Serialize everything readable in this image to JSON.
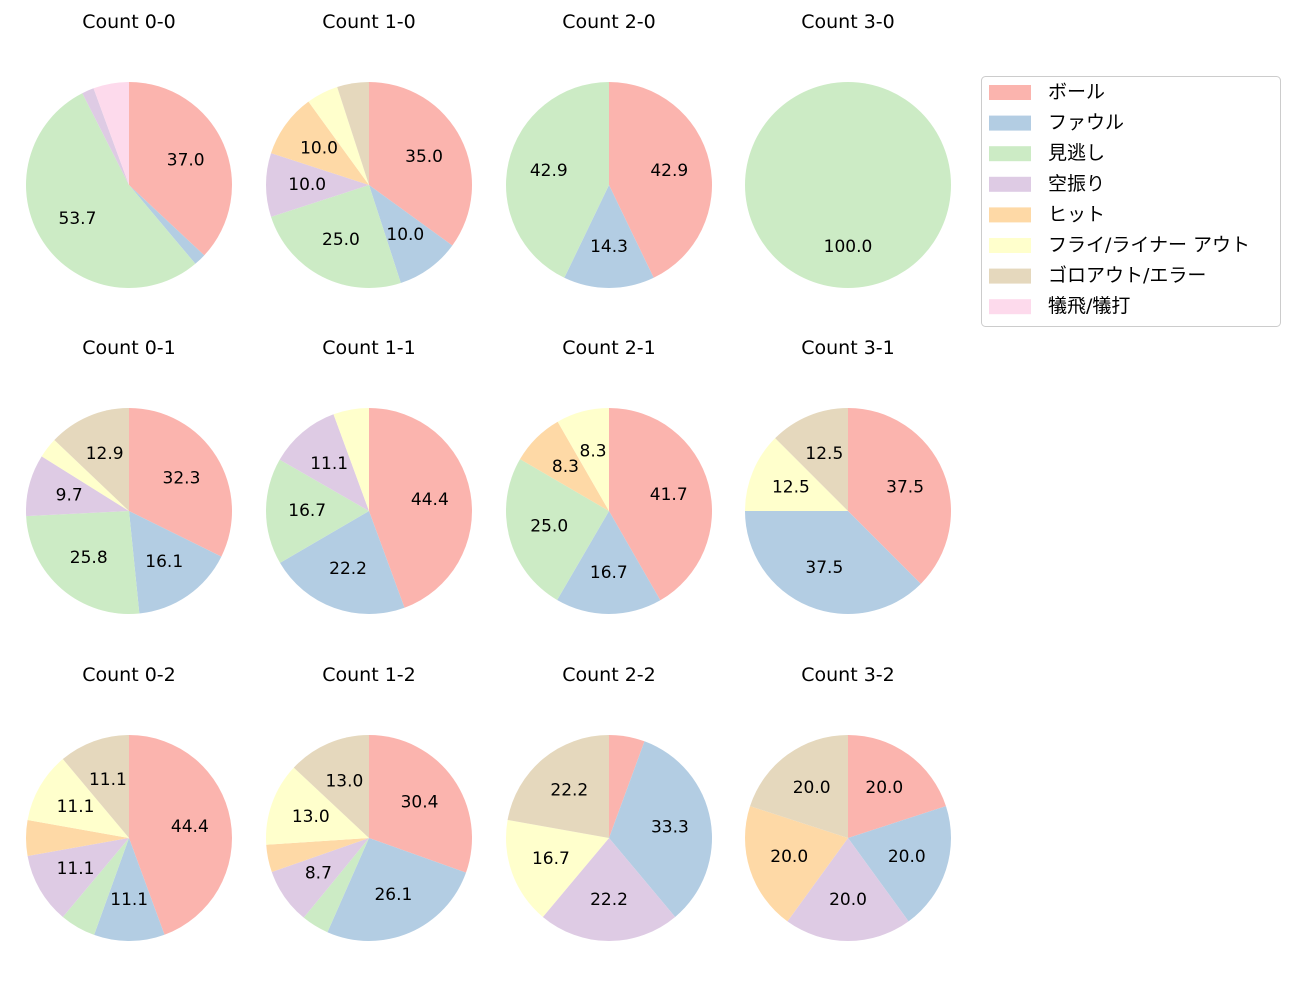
{
  "chart_data": {
    "type": "pie",
    "categories": [
      "ボール",
      "ファウル",
      "見逃し",
      "空振り",
      "ヒット",
      "フライ/ライナー アウト",
      "ゴロアウト/エラー",
      "犠飛/犠打"
    ],
    "colors": [
      "#fbb4ae",
      "#b3cde3",
      "#ccebc5",
      "#decbe4",
      "#fed9a6",
      "#ffffcc",
      "#e5d8bd",
      "#fddaec"
    ],
    "start_angle": 90,
    "direction": "clockwise",
    "label_format": "percent, 1 decimal; labels hidden for small slices",
    "legend": "top-right",
    "charts": [
      {
        "title": "Count 0-0",
        "values": [
          37.0,
          1.9,
          53.7,
          1.9,
          0,
          0,
          0,
          5.6
        ]
      },
      {
        "title": "Count 1-0",
        "values": [
          35.0,
          10.0,
          25.0,
          10.0,
          10.0,
          5.0,
          5.0,
          0
        ]
      },
      {
        "title": "Count 2-0",
        "values": [
          42.9,
          14.3,
          42.9,
          0,
          0,
          0,
          0,
          0
        ]
      },
      {
        "title": "Count 3-0",
        "values": [
          0,
          0,
          100.0,
          0,
          0,
          0,
          0,
          0
        ]
      },
      {
        "title": "Count 0-1",
        "values": [
          32.3,
          16.1,
          25.8,
          9.7,
          0,
          3.2,
          12.9,
          0
        ]
      },
      {
        "title": "Count 1-1",
        "values": [
          44.4,
          22.2,
          16.7,
          11.1,
          0,
          5.6,
          0,
          0
        ]
      },
      {
        "title": "Count 2-1",
        "values": [
          41.7,
          16.7,
          25.0,
          0,
          8.3,
          8.3,
          0,
          0
        ]
      },
      {
        "title": "Count 3-1",
        "values": [
          37.5,
          37.5,
          0,
          0,
          0,
          12.5,
          12.5,
          0
        ]
      },
      {
        "title": "Count 0-2",
        "values": [
          44.4,
          11.1,
          5.6,
          11.1,
          5.6,
          11.1,
          11.1,
          0
        ]
      },
      {
        "title": "Count 1-2",
        "values": [
          30.4,
          26.1,
          4.3,
          8.7,
          4.3,
          13.0,
          13.0,
          0
        ]
      },
      {
        "title": "Count 2-2",
        "values": [
          5.6,
          33.3,
          0,
          22.2,
          0,
          16.7,
          22.2,
          0
        ]
      },
      {
        "title": "Count 3-2",
        "values": [
          20.0,
          20.0,
          0,
          20.0,
          20.0,
          0,
          20.0,
          0
        ]
      }
    ]
  }
}
